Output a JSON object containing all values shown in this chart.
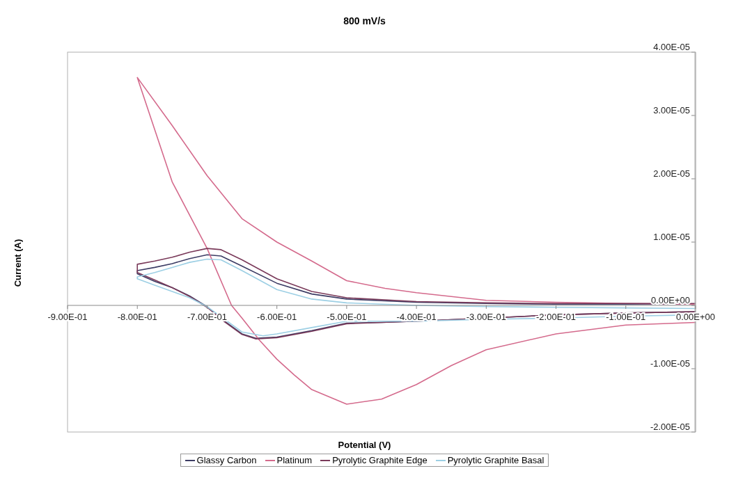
{
  "chart_data": {
    "type": "line",
    "title": "800 mV/s",
    "xlabel": "Potential (V)",
    "ylabel": "Current (A)",
    "xlim": [
      -0.9,
      0
    ],
    "ylim": [
      -2e-05,
      4e-05
    ],
    "xticks": [
      {
        "value": -0.9,
        "label": "-9.00E-01"
      },
      {
        "value": -0.8,
        "label": "-8.00E-01"
      },
      {
        "value": -0.7,
        "label": "-7.00E-01"
      },
      {
        "value": -0.6,
        "label": "-6.00E-01"
      },
      {
        "value": -0.5,
        "label": "-5.00E-01"
      },
      {
        "value": -0.4,
        "label": "-4.00E-01"
      },
      {
        "value": -0.3,
        "label": "-3.00E-01"
      },
      {
        "value": -0.2,
        "label": "-2.00E-01"
      },
      {
        "value": -0.1,
        "label": "-1.00E-01"
      },
      {
        "value": 0,
        "label": "0.00E+00"
      }
    ],
    "yticks": [
      {
        "value": -2e-05,
        "label": "-2.00E-05"
      },
      {
        "value": -1e-05,
        "label": "-1.00E-05"
      },
      {
        "value": 0,
        "label": "0.00E+00"
      },
      {
        "value": 1e-05,
        "label": "1.00E-05"
      },
      {
        "value": 2e-05,
        "label": "2.00E-05"
      },
      {
        "value": 3e-05,
        "label": "3.00E-05"
      },
      {
        "value": 4e-05,
        "label": "4.00E-05"
      }
    ],
    "grid": false,
    "legend": "bottom",
    "line_style": "solid",
    "series": [
      {
        "name": "Glassy Carbon",
        "color": "#3c3c64",
        "x": [
          0,
          -0.1,
          -0.2,
          -0.3,
          -0.4,
          -0.45,
          -0.5,
          -0.55,
          -0.6,
          -0.63,
          -0.65,
          -0.675,
          -0.7,
          -0.725,
          -0.75,
          -0.775,
          -0.8,
          -0.8,
          -0.775,
          -0.75,
          -0.725,
          -0.7,
          -0.68,
          -0.65,
          -0.6,
          -0.55,
          -0.5,
          -0.4,
          -0.3,
          -0.2,
          -0.1,
          0
        ],
        "values": [
          -1e-06,
          -1.2e-06,
          -1.5e-06,
          -2e-06,
          -2.5e-06,
          -2.7e-06,
          -2.8e-06,
          -4e-06,
          -5e-06,
          -5.2e-06,
          -4.5e-06,
          -2.5e-06,
          -2e-07,
          1.5e-06,
          2.8e-06,
          3.8e-06,
          5e-06,
          5.5e-06,
          6e-06,
          6.6e-06,
          7.4e-06,
          8e-06,
          7.8e-06,
          6.2e-06,
          3.5e-06,
          1.8e-06,
          1e-06,
          5e-07,
          3e-07,
          2e-07,
          2e-07,
          2e-07
        ]
      },
      {
        "name": "Platinum",
        "color": "#d46a8c",
        "x": [
          0,
          -0.1,
          -0.2,
          -0.3,
          -0.35,
          -0.4,
          -0.45,
          -0.5,
          -0.55,
          -0.575,
          -0.6,
          -0.625,
          -0.65,
          -0.665,
          -0.7,
          -0.75,
          -0.8,
          -0.75,
          -0.7,
          -0.65,
          -0.6,
          -0.55,
          -0.5,
          -0.445,
          -0.4,
          -0.3,
          -0.2,
          -0.1,
          0
        ],
        "values": [
          -2.7e-06,
          -3.1e-06,
          -4.5e-06,
          -7e-06,
          -9.5e-06,
          -1.25e-05,
          -1.48e-05,
          -1.56e-05,
          -1.33e-05,
          -1.1e-05,
          -8.5e-06,
          -5.5e-06,
          -2e-06,
          0,
          9e-06,
          1.95e-05,
          3.6e-05,
          2.84e-05,
          2.05e-05,
          1.37e-05,
          1e-05,
          7e-06,
          3.9e-06,
          2.7e-06,
          2e-06,
          8e-07,
          5e-07,
          3e-07,
          2e-07
        ]
      },
      {
        "name": "Pyrolytic Graphite Edge",
        "color": "#7a3a5a",
        "x": [
          0,
          -0.1,
          -0.2,
          -0.3,
          -0.4,
          -0.45,
          -0.5,
          -0.55,
          -0.6,
          -0.63,
          -0.65,
          -0.675,
          -0.7,
          -0.725,
          -0.75,
          -0.775,
          -0.8,
          -0.8,
          -0.775,
          -0.75,
          -0.725,
          -0.7,
          -0.68,
          -0.65,
          -0.6,
          -0.55,
          -0.5,
          -0.4,
          -0.3,
          -0.2,
          -0.1,
          0
        ],
        "values": [
          -1e-06,
          -1.2e-06,
          -1.5e-06,
          -2e-06,
          -2.5e-06,
          -2.7e-06,
          -2.9e-06,
          -4.1e-06,
          -5.1e-06,
          -5.3e-06,
          -4.6e-06,
          -2.6e-06,
          -3e-07,
          1.4e-06,
          2.8e-06,
          4e-06,
          5.2e-06,
          6.5e-06,
          7e-06,
          7.6e-06,
          8.4e-06,
          9e-06,
          8.8e-06,
          7.2e-06,
          4.2e-06,
          2.2e-06,
          1.2e-06,
          6e-07,
          4e-07,
          3e-07,
          3e-07,
          3e-07
        ]
      },
      {
        "name": "Pyrolytic Graphite Basal",
        "color": "#9ccfe4",
        "x": [
          0,
          -0.1,
          -0.2,
          -0.3,
          -0.4,
          -0.5,
          -0.55,
          -0.6,
          -0.62,
          -0.65,
          -0.675,
          -0.7,
          -0.725,
          -0.75,
          -0.775,
          -0.8,
          -0.8,
          -0.775,
          -0.75,
          -0.725,
          -0.7,
          -0.68,
          -0.65,
          -0.6,
          -0.55,
          -0.5,
          -0.4,
          -0.3,
          -0.2,
          -0.1,
          0
        ],
        "values": [
          -1.5e-06,
          -1.7e-06,
          -2e-06,
          -2.2e-06,
          -2.5e-06,
          -2.5e-06,
          -3.5e-06,
          -4.5e-06,
          -4.8e-06,
          -4.2e-06,
          -2.2e-06,
          -2e-07,
          1.2e-06,
          2.2e-06,
          3.2e-06,
          4.2e-06,
          4.5e-06,
          5.2e-06,
          6e-06,
          6.8e-06,
          7.3e-06,
          7.2e-06,
          5.5e-06,
          2.5e-06,
          1e-06,
          4e-07,
          0,
          -2e-07,
          -3e-07,
          -4e-07,
          -5e-07
        ]
      }
    ]
  }
}
